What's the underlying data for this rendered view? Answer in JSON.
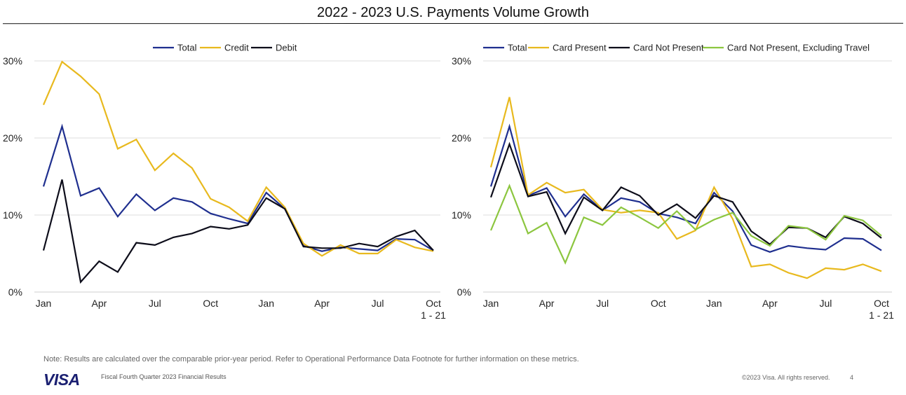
{
  "page": {
    "title": "2022 - 2023 U.S. Payments Volume Growth",
    "note": "Note: Results are calculated over the comparable prior-year period. Refer to Operational Performance Data Footnote for further information on these metrics.",
    "logo_text": "VISA",
    "footer_left": "Fiscal Fourth Quarter 2023 Financial Results",
    "footer_right": "©2023 Visa. All rights reserved.",
    "page_number": "4"
  },
  "colors": {
    "total": "#1f2f8f",
    "credit": "#e8b91e",
    "debit": "#0d0d1a",
    "card_present": "#e8b91e",
    "card_not_present": "#0d0d1a",
    "cnp_ex_travel": "#8cc63f",
    "grid": "#dedede",
    "axis_text": "#222222"
  },
  "chart_data": [
    {
      "type": "line",
      "x_tick_labels": [
        "Jan",
        "Apr",
        "Jul",
        "Oct",
        "Jan",
        "Apr",
        "Jul",
        "Oct"
      ],
      "x_tick_sublabel": "1 - 21",
      "y_tick_labels": [
        "0%",
        "10%",
        "20%",
        "30%"
      ],
      "ylim": [
        0,
        30
      ],
      "grid": true,
      "legend_position": "top",
      "series": [
        {
          "name": "Total",
          "color_key": "total",
          "values": [
            13.7,
            21.5,
            12.5,
            13.5,
            9.8,
            12.7,
            10.6,
            12.2,
            11.7,
            10.2,
            9.5,
            8.9,
            12.9,
            10.8,
            6.0,
            5.3,
            5.8,
            5.6,
            5.4,
            6.9,
            6.8,
            5.4
          ]
        },
        {
          "name": "Credit",
          "color_key": "credit",
          "values": [
            24.3,
            29.9,
            28.0,
            25.7,
            18.6,
            19.8,
            15.8,
            18.0,
            16.1,
            12.1,
            11.0,
            9.2,
            13.6,
            11.0,
            6.3,
            4.7,
            6.1,
            5.0,
            5.0,
            6.8,
            5.8,
            5.3
          ]
        },
        {
          "name": "Debit",
          "color_key": "debit",
          "values": [
            5.4,
            14.6,
            1.3,
            4.0,
            2.6,
            6.4,
            6.1,
            7.1,
            7.6,
            8.5,
            8.2,
            8.7,
            12.2,
            10.8,
            5.9,
            5.7,
            5.7,
            6.3,
            5.9,
            7.2,
            8.0,
            5.4
          ]
        }
      ]
    },
    {
      "type": "line",
      "x_tick_labels": [
        "Jan",
        "Apr",
        "Jul",
        "Oct",
        "Jan",
        "Apr",
        "Jul",
        "Oct"
      ],
      "x_tick_sublabel": "1 - 21",
      "y_tick_labels": [
        "0%",
        "10%",
        "20%",
        "30%"
      ],
      "ylim": [
        0,
        30
      ],
      "grid": true,
      "legend_position": "top",
      "series": [
        {
          "name": "Total",
          "color_key": "total",
          "values": [
            13.7,
            21.5,
            12.5,
            13.5,
            9.8,
            12.7,
            10.6,
            12.2,
            11.7,
            10.2,
            9.7,
            8.9,
            12.9,
            10.5,
            6.1,
            5.2,
            6.0,
            5.7,
            5.5,
            7.0,
            6.9,
            5.4
          ]
        },
        {
          "name": "Card Present",
          "color_key": "card_present",
          "values": [
            16.2,
            25.3,
            12.6,
            14.2,
            12.9,
            13.3,
            10.7,
            10.3,
            10.6,
            10.3,
            6.9,
            8.0,
            13.6,
            9.5,
            3.3,
            3.6,
            2.5,
            1.8,
            3.1,
            2.9,
            3.6,
            2.7
          ]
        },
        {
          "name": "Card Not Present",
          "color_key": "card_not_present",
          "values": [
            12.3,
            19.2,
            12.4,
            13.0,
            7.6,
            12.3,
            10.6,
            13.6,
            12.5,
            10.0,
            11.4,
            9.6,
            12.5,
            11.7,
            7.9,
            6.2,
            8.4,
            8.3,
            7.1,
            9.8,
            8.9,
            7.0
          ]
        },
        {
          "name": "Card Not Present, Excluding Travel",
          "color_key": "cnp_ex_travel",
          "values": [
            8.0,
            13.8,
            7.6,
            9.0,
            3.8,
            9.7,
            8.7,
            11.0,
            9.7,
            8.3,
            10.5,
            8.1,
            9.4,
            10.3,
            7.3,
            6.0,
            8.6,
            8.3,
            6.8,
            9.9,
            9.3,
            7.3
          ]
        }
      ]
    }
  ]
}
